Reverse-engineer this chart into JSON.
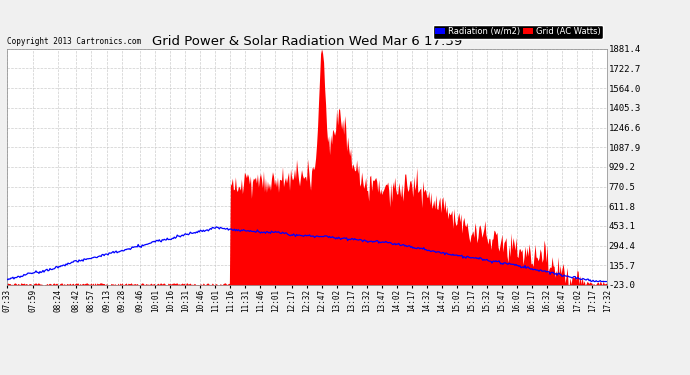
{
  "title": "Grid Power & Solar Radiation Wed Mar 6 17:39",
  "copyright": "Copyright 2013 Cartronics.com",
  "background_color": "#f0f0f0",
  "plot_bg_color": "#ffffff",
  "yticks": [
    -23.0,
    135.7,
    294.4,
    453.1,
    611.8,
    770.5,
    929.2,
    1087.9,
    1246.6,
    1405.3,
    1564.0,
    1722.7,
    1881.4
  ],
  "ymin": -23.0,
  "ymax": 1881.4,
  "grid_color": "#c8c8c8",
  "radiation_color": "#0000ff",
  "grid_power_color": "#ff0000",
  "xtick_labels": [
    "07:33",
    "07:59",
    "08:24",
    "08:42",
    "08:57",
    "09:13",
    "09:28",
    "09:46",
    "10:01",
    "10:16",
    "10:31",
    "10:46",
    "11:01",
    "11:16",
    "11:31",
    "11:46",
    "12:01",
    "12:17",
    "12:32",
    "12:47",
    "13:02",
    "13:17",
    "13:32",
    "13:47",
    "14:02",
    "14:17",
    "14:32",
    "14:47",
    "15:02",
    "15:17",
    "15:32",
    "15:47",
    "16:02",
    "16:17",
    "16:32",
    "16:47",
    "17:02",
    "17:17",
    "17:32"
  ]
}
